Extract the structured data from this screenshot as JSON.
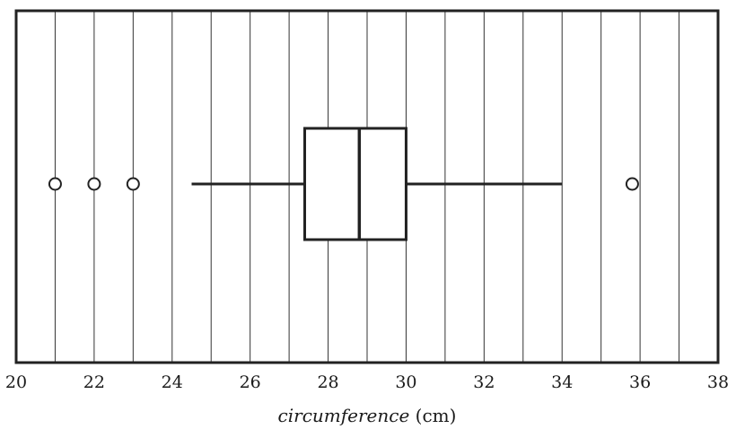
{
  "chart_data": {
    "type": "boxplot",
    "xlim": [
      20,
      38
    ],
    "tick_step": 2,
    "ticks": [
      "20",
      "22",
      "24",
      "26",
      "28",
      "30",
      "32",
      "34",
      "36",
      "38"
    ],
    "grid": "vertical lines every 1 unit",
    "xlabel_italic": "circumference",
    "xlabel_unit": "(cm)",
    "box": {
      "whisker_low": 24.5,
      "q1": 27.4,
      "median": 28.8,
      "q3": 30.0,
      "whisker_high": 34.0
    },
    "outliers": [
      21.0,
      22.0,
      23.0,
      35.8
    ]
  }
}
